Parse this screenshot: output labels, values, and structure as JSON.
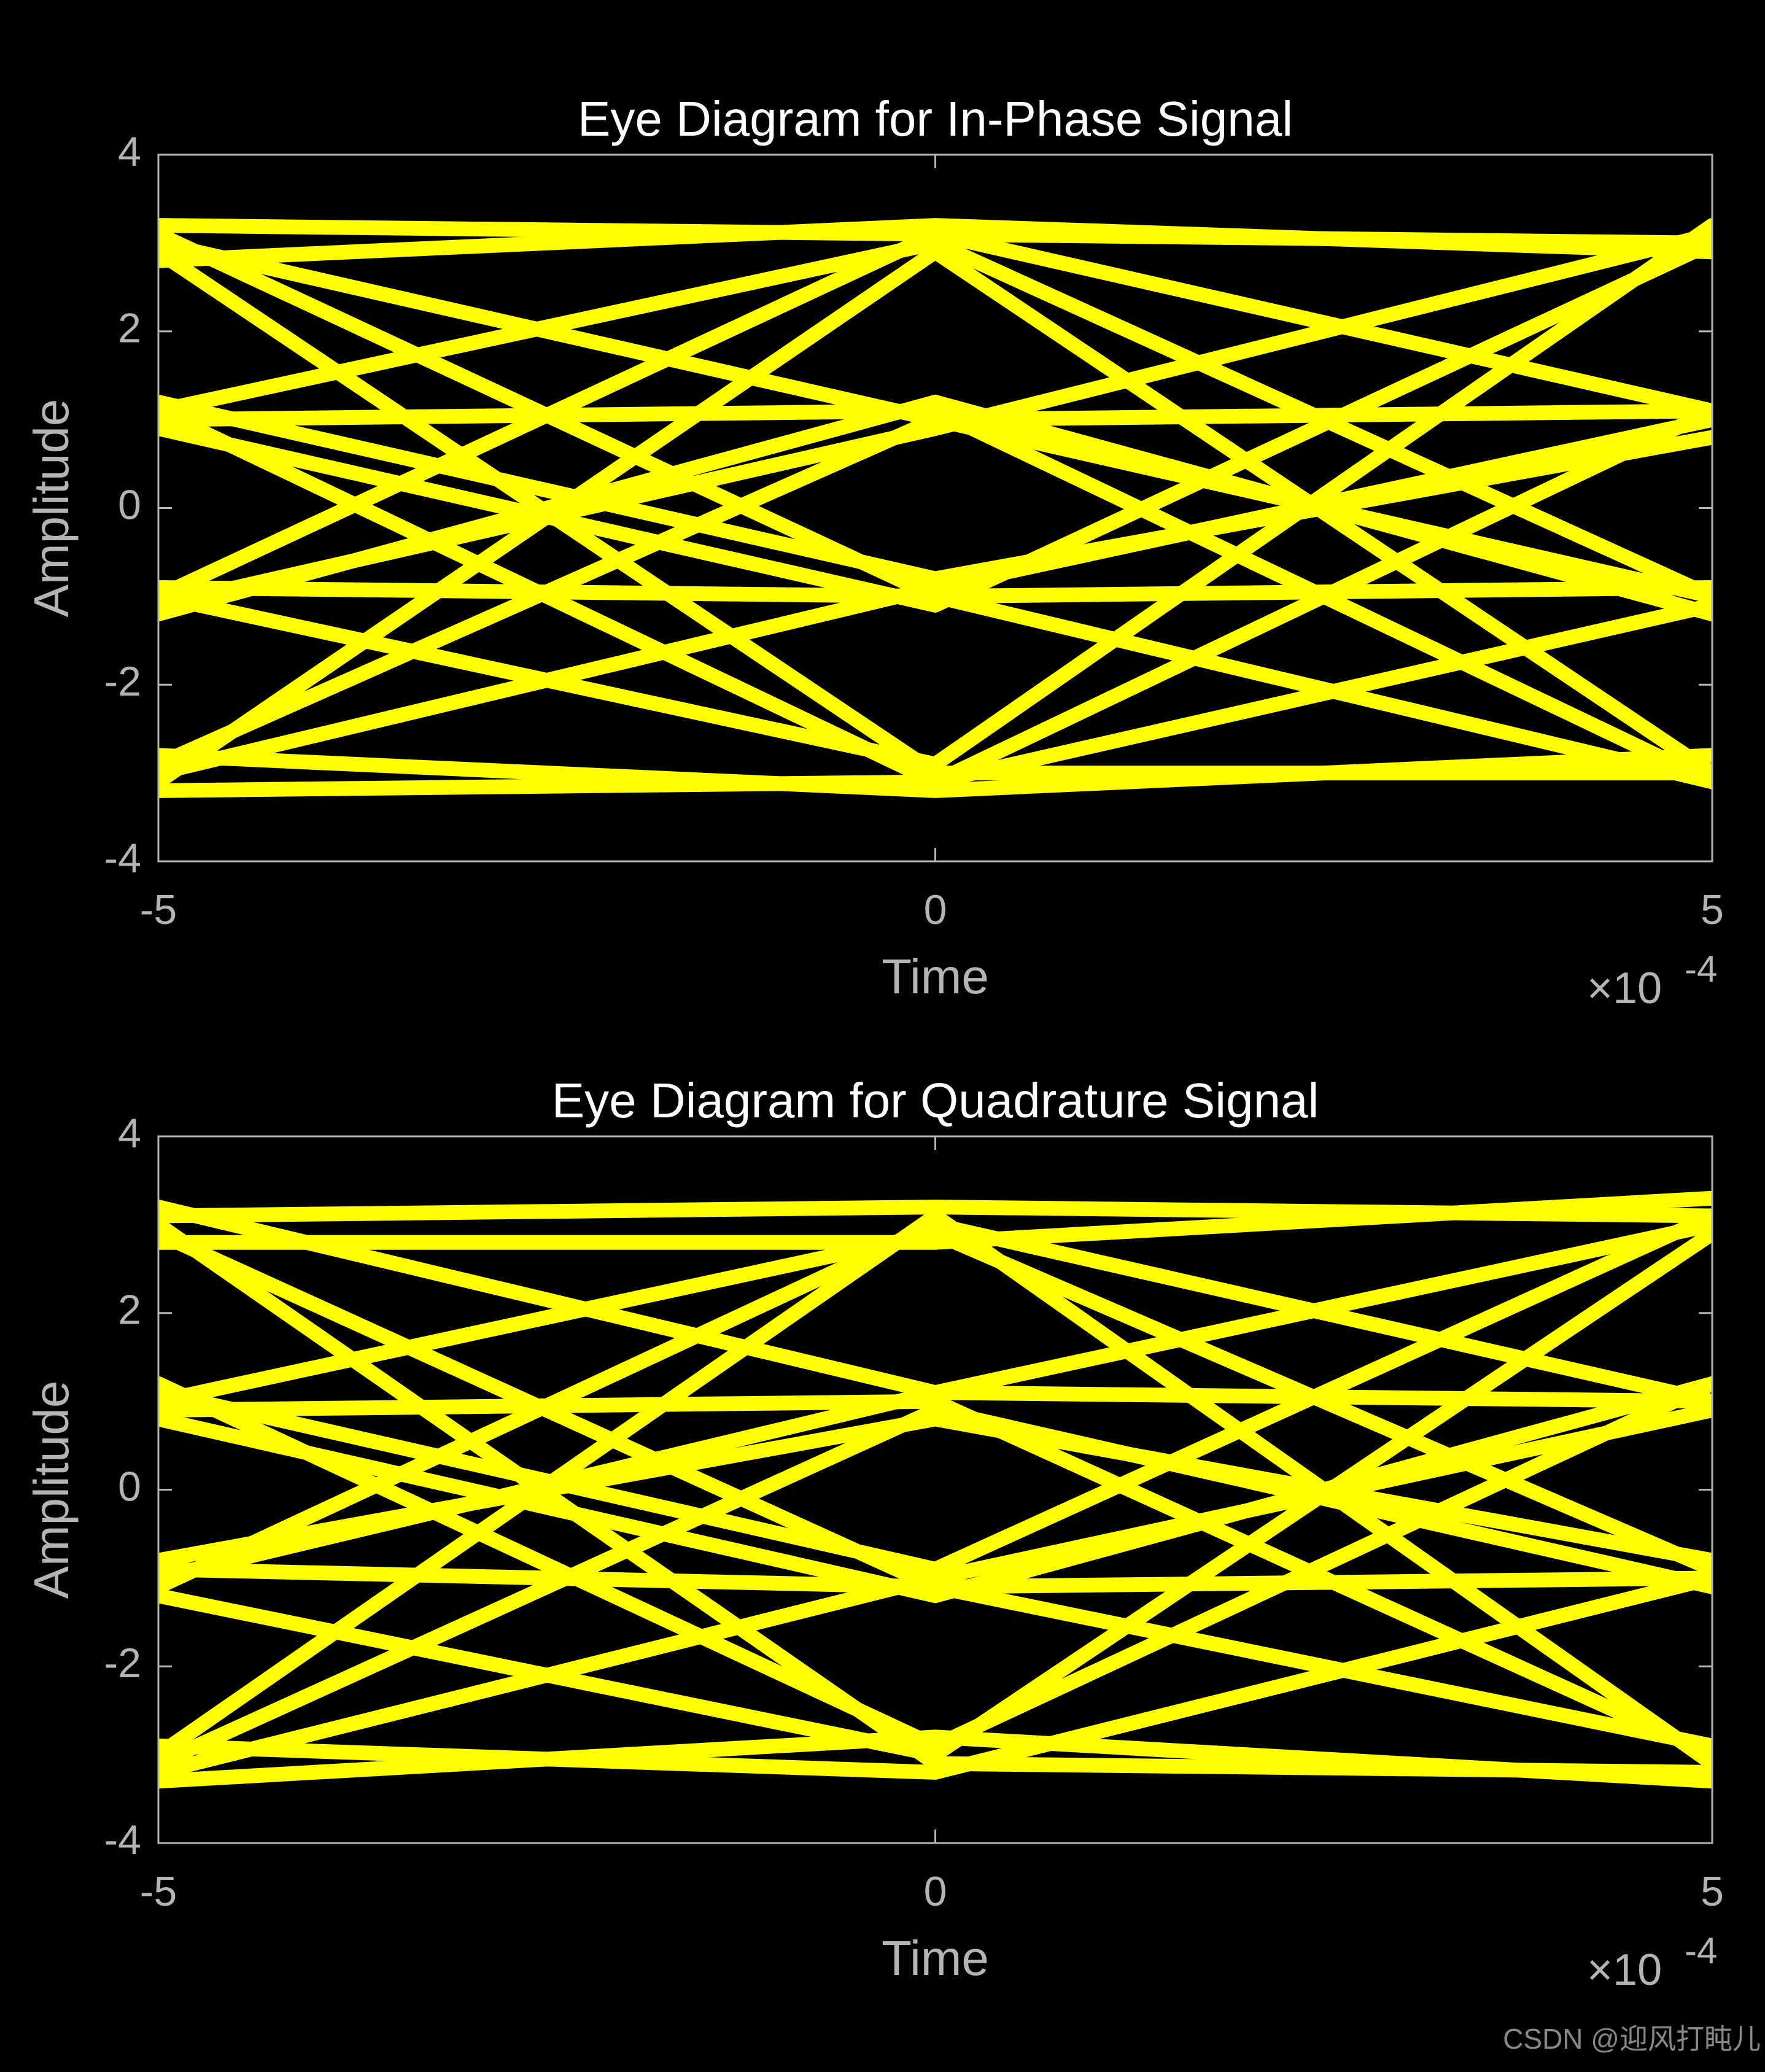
{
  "chart_data": [
    {
      "type": "line",
      "title": "Eye Diagram for In-Phase Signal",
      "x_label": "Time",
      "y_label": "Amplitude",
      "x_multiplier": "×10",
      "x_exponent": "-4",
      "color": "#ffff00",
      "x": [
        -0.0005,
        0,
        0.0005
      ],
      "xlim": [
        -0.0005,
        0.0005
      ],
      "ylim": [
        -4,
        4
      ],
      "xticks": [
        {
          "value": -0.0005,
          "label": "-5"
        },
        {
          "value": 0,
          "label": "0"
        },
        {
          "value": 0.0005,
          "label": "5"
        }
      ],
      "yticks": [
        -4,
        -2,
        0,
        2,
        4
      ],
      "series": [
        {
          "values": [
            3.2,
            3.1,
            3.0
          ]
        },
        {
          "values": [
            1.1,
            3.0,
            -1.0
          ]
        },
        {
          "values": [
            -1.0,
            3.1,
            1.1
          ]
        },
        {
          "values": [
            -3.1,
            2.9,
            -3.0
          ]
        },
        {
          "values": [
            3.0,
            1.0,
            1.1
          ]
        },
        {
          "values": [
            1.0,
            1.1,
            -3.1
          ]
        },
        {
          "values": [
            -1.1,
            0.9,
            3.1
          ]
        },
        {
          "values": [
            -2.9,
            1.0,
            -1.0
          ]
        },
        {
          "values": [
            3.1,
            -1.0,
            -0.9
          ]
        },
        {
          "values": [
            0.9,
            -1.1,
            3.0
          ]
        },
        {
          "values": [
            -0.9,
            -1.0,
            -3.1
          ]
        },
        {
          "values": [
            -3.0,
            -0.9,
            1.0
          ]
        },
        {
          "values": [
            2.9,
            -3.0,
            -3.0
          ]
        },
        {
          "values": [
            1.1,
            -3.1,
            1.1
          ]
        },
        {
          "values": [
            -1.0,
            -2.9,
            3.2
          ]
        },
        {
          "values": [
            -3.2,
            -3.1,
            -1.1
          ]
        },
        {
          "values": [
            2.8,
            3.2,
            2.9
          ]
        },
        {
          "values": [
            1.2,
            -0.8,
            0.8
          ]
        },
        {
          "values": [
            -1.2,
            1.2,
            -1.2
          ]
        },
        {
          "values": [
            -2.8,
            -3.2,
            -2.8
          ]
        }
      ]
    },
    {
      "type": "line",
      "title": "Eye Diagram for Quadrature Signal",
      "x_label": "Time",
      "y_label": "Amplitude",
      "x_multiplier": "×10",
      "x_exponent": "-4",
      "color": "#ffff00",
      "x": [
        -0.0005,
        0,
        0.0005
      ],
      "xlim": [
        -0.0005,
        0.0005
      ],
      "ylim": [
        -4,
        4
      ],
      "xticks": [
        {
          "value": -0.0005,
          "label": "-5"
        },
        {
          "value": 0,
          "label": "0"
        },
        {
          "value": 0.0005,
          "label": "5"
        }
      ],
      "yticks": [
        -4,
        -2,
        0,
        2,
        4
      ],
      "series": [
        {
          "values": [
            3.1,
            3.2,
            3.1
          ]
        },
        {
          "values": [
            1.0,
            2.9,
            -0.9
          ]
        },
        {
          "values": [
            -1.1,
            3.0,
            1.0
          ]
        },
        {
          "values": [
            -3.0,
            3.1,
            -3.1
          ]
        },
        {
          "values": [
            3.2,
            1.1,
            1.0
          ]
        },
        {
          "values": [
            0.9,
            1.0,
            -3.0
          ]
        },
        {
          "values": [
            -1.0,
            1.1,
            3.0
          ]
        },
        {
          "values": [
            -3.1,
            0.9,
            -1.1
          ]
        },
        {
          "values": [
            2.9,
            -1.1,
            -1.0
          ]
        },
        {
          "values": [
            1.1,
            -0.9,
            3.1
          ]
        },
        {
          "values": [
            -0.9,
            -1.1,
            -2.9
          ]
        },
        {
          "values": [
            -3.2,
            -1.0,
            0.9
          ]
        },
        {
          "values": [
            3.0,
            -3.1,
            -3.2
          ]
        },
        {
          "values": [
            1.2,
            -2.9,
            1.2
          ]
        },
        {
          "values": [
            -1.2,
            -3.0,
            2.9
          ]
        },
        {
          "values": [
            -2.9,
            -3.2,
            -1.0
          ]
        },
        {
          "values": [
            2.8,
            2.8,
            3.3
          ]
        },
        {
          "values": [
            0.8,
            -1.2,
            1.2
          ]
        },
        {
          "values": [
            -0.8,
            0.8,
            -0.8
          ]
        },
        {
          "values": [
            -3.3,
            -2.8,
            -3.3
          ]
        }
      ]
    }
  ],
  "watermark": "CSDN @迎风打盹儿"
}
